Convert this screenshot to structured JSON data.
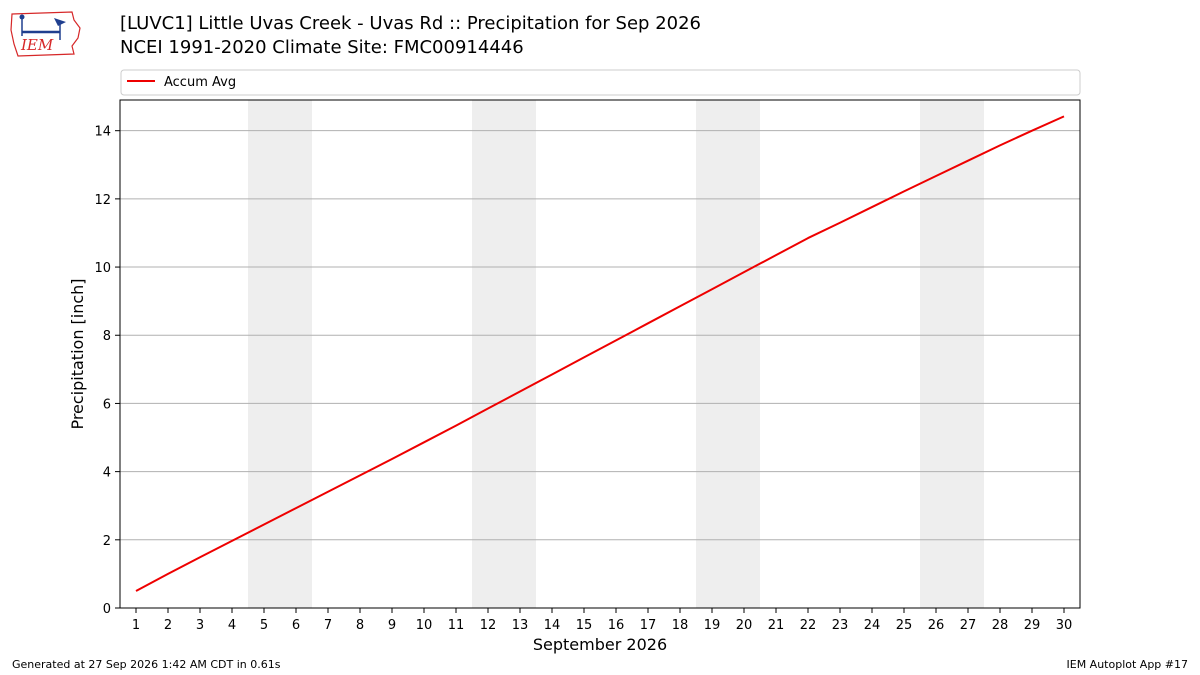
{
  "header": {
    "title_line1": "[LUVC1] Little Uvas Creek - Uvas Rd :: Precipitation for Sep 2026",
    "title_line2": "NCEI 1991-2020 Climate Site: FMC00914446"
  },
  "logo": {
    "text": "IEM",
    "color": "#d62728"
  },
  "footer": {
    "left": "Generated at 27 Sep 2026 1:42 AM CDT in 0.61s",
    "right": "IEM Autoplot App #17"
  },
  "chart_data": {
    "type": "line",
    "xlabel": "September 2026",
    "ylabel": "Precipitation [inch]",
    "x": [
      1,
      2,
      3,
      4,
      5,
      6,
      7,
      8,
      9,
      10,
      11,
      12,
      13,
      14,
      15,
      16,
      17,
      18,
      19,
      20,
      21,
      22,
      23,
      24,
      25,
      26,
      27,
      28,
      29,
      30
    ],
    "xlim": [
      0.5,
      30.5
    ],
    "ylim": [
      0,
      14.9
    ],
    "yticks": [
      0,
      2,
      4,
      6,
      8,
      10,
      12,
      14
    ],
    "grid": "horizontal",
    "legend_position": "top-left",
    "weekend_bands": [
      [
        4.5,
        6.5
      ],
      [
        11.5,
        13.5
      ],
      [
        18.5,
        20.5
      ],
      [
        25.5,
        27.5
      ]
    ],
    "band_color": "#eeeeee",
    "series": [
      {
        "name": "Accum Avg",
        "color": "#ee0000",
        "values": [
          0.5,
          1.0,
          1.49,
          1.97,
          2.45,
          2.93,
          3.41,
          3.89,
          4.37,
          4.86,
          5.35,
          5.85,
          6.35,
          6.85,
          7.35,
          7.85,
          8.35,
          8.85,
          9.35,
          9.85,
          10.35,
          10.85,
          11.3,
          11.76,
          12.22,
          12.67,
          13.12,
          13.57,
          14.0,
          14.42
        ]
      }
    ]
  }
}
